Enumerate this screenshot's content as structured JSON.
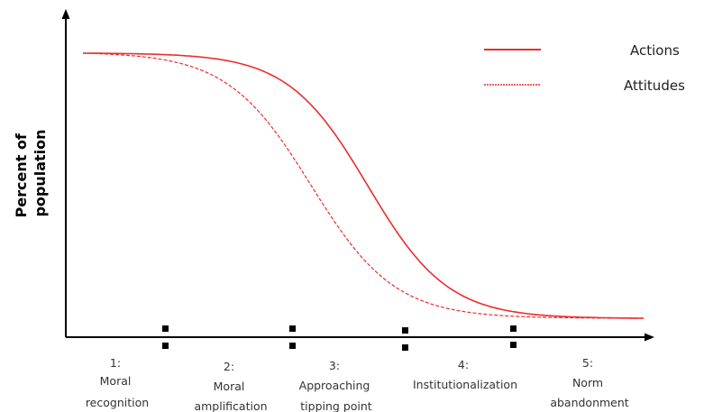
{
  "figure": {
    "y_axis_label": [
      "Percent of",
      "population"
    ],
    "colors": {
      "curve": "#ee2b2b",
      "axis": "#000000",
      "marker": "#000000"
    },
    "icons": {
      "stage_boundary_marker": "double-square-marker-icon"
    }
  },
  "legend": {
    "placement": "top-right",
    "items": [
      {
        "label": "Actions",
        "style": "solid"
      },
      {
        "label": "Attitudes",
        "style": "dashed"
      }
    ]
  },
  "stages": [
    {
      "number": "1:",
      "line2": "Moral",
      "line3": "recognition"
    },
    {
      "number": "2:",
      "line2": "Moral",
      "line3": "amplification"
    },
    {
      "number": "3:",
      "line2": "Approaching",
      "line3": "tipping point"
    },
    {
      "number": "4:",
      "line2": "Institutionalization",
      "line3": ""
    },
    {
      "number": "5:",
      "line2": "Norm",
      "line3": "abandonment"
    }
  ]
}
